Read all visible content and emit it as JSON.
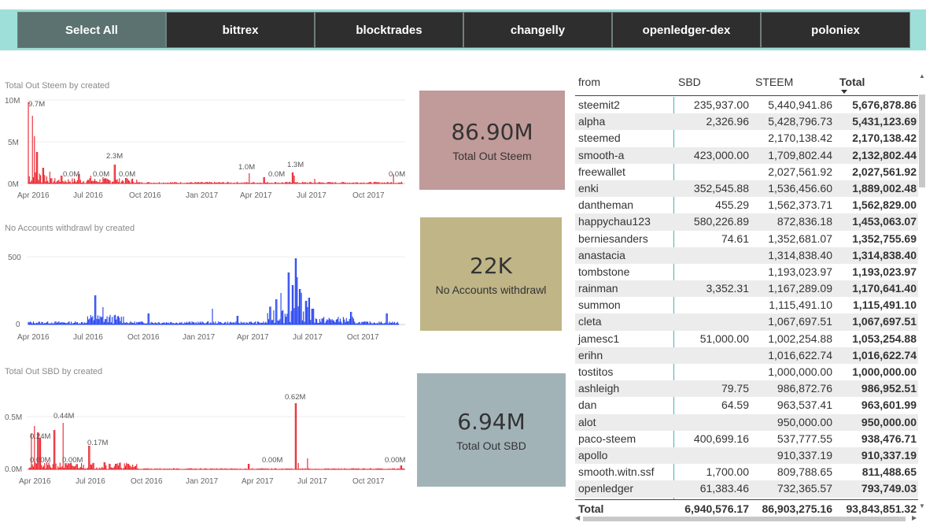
{
  "slicer": {
    "buttons": [
      {
        "label": "Select All",
        "selected": true
      },
      {
        "label": "bittrex",
        "selected": false
      },
      {
        "label": "blocktrades",
        "selected": false
      },
      {
        "label": "changelly",
        "selected": false
      },
      {
        "label": "openledger-dex",
        "selected": false
      },
      {
        "label": "poloniex",
        "selected": false
      }
    ]
  },
  "colors": {
    "slicer_bg": "#9fdfd9",
    "red_series": "#e8202a",
    "blue_series": "#1f3ff0",
    "card_steem": "#c09b99",
    "card_accounts": "#bfb587",
    "card_sbd": "#a2b3b8",
    "table_accent": "#40b8ae"
  },
  "chart_data": [
    {
      "type": "bar",
      "title": "Total Out Steem by created",
      "y_ticks": [
        "10M",
        "5M",
        "0M"
      ],
      "ylim": [
        0,
        10000000
      ],
      "x_ticks": [
        "Apr 2016",
        "Jul 2016",
        "Oct 2016",
        "Jan 2017",
        "Apr 2017",
        "Jul 2017",
        "Oct 2017"
      ],
      "annotations": [
        {
          "label": "9.7M",
          "value": 9700000
        },
        {
          "label": "0.0M",
          "value": 0
        },
        {
          "label": "0.0M",
          "value": 0
        },
        {
          "label": "2.3M",
          "value": 2300000
        },
        {
          "label": "0.0M",
          "value": 0
        },
        {
          "label": "1.0M",
          "value": 1000000
        },
        {
          "label": "0.0M",
          "value": 0
        },
        {
          "label": "1.3M",
          "value": 1300000
        },
        {
          "label": "0.0M",
          "value": 0
        }
      ]
    },
    {
      "type": "bar",
      "title": "No Accounts withdrawl by created",
      "y_ticks": [
        "500",
        "0"
      ],
      "ylim": [
        0,
        500
      ],
      "x_ticks": [
        "Apr 2016",
        "Jul 2016",
        "Oct 2016",
        "Jan 2017",
        "Apr 2017",
        "Jul 2017",
        "Oct 2017"
      ],
      "annotations": []
    },
    {
      "type": "bar",
      "title": "Total Out SBD by created",
      "y_ticks": [
        "0.5M",
        "0.0M"
      ],
      "ylim": [
        0,
        700000
      ],
      "x_ticks": [
        "Apr 2016",
        "Jul 2016",
        "Oct 2016",
        "Jan 2017",
        "Apr 2017",
        "Jul 2017",
        "Oct 2017"
      ],
      "annotations": [
        {
          "label": "0.24M",
          "value": 240000
        },
        {
          "label": "0.00M",
          "value": 0
        },
        {
          "label": "0.44M",
          "value": 440000
        },
        {
          "label": "0.00M",
          "value": 0
        },
        {
          "label": "0.17M",
          "value": 170000
        },
        {
          "label": "0.00M",
          "value": 0
        },
        {
          "label": "0.62M",
          "value": 620000
        },
        {
          "label": "0.00M",
          "value": 0
        }
      ]
    }
  ],
  "cards": {
    "steem": {
      "value": "86.90M",
      "label": "Total Out Steem"
    },
    "accounts": {
      "value": "22K",
      "label": "No Accounts withdrawl"
    },
    "sbd": {
      "value": "6.94M",
      "label": "Total Out SBD"
    }
  },
  "table": {
    "headers": {
      "from": "from",
      "sbd": "SBD",
      "steem": "STEEM",
      "total": "Total"
    },
    "rows": [
      {
        "from": "steemit2",
        "sbd": "235,937.00",
        "steem": "5,440,941.86",
        "total": "5,676,878.86"
      },
      {
        "from": "alpha",
        "sbd": "2,326.96",
        "steem": "5,428,796.73",
        "total": "5,431,123.69"
      },
      {
        "from": "steemed",
        "sbd": "",
        "steem": "2,170,138.42",
        "total": "2,170,138.42"
      },
      {
        "from": "smooth-a",
        "sbd": "423,000.00",
        "steem": "1,709,802.44",
        "total": "2,132,802.44"
      },
      {
        "from": "freewallet",
        "sbd": "",
        "steem": "2,027,561.92",
        "total": "2,027,561.92"
      },
      {
        "from": "enki",
        "sbd": "352,545.88",
        "steem": "1,536,456.60",
        "total": "1,889,002.48"
      },
      {
        "from": "dantheman",
        "sbd": "455.29",
        "steem": "1,562,373.71",
        "total": "1,562,829.00"
      },
      {
        "from": "happychau123",
        "sbd": "580,226.89",
        "steem": "872,836.18",
        "total": "1,453,063.07"
      },
      {
        "from": "berniesanders",
        "sbd": "74.61",
        "steem": "1,352,681.07",
        "total": "1,352,755.69"
      },
      {
        "from": "anastacia",
        "sbd": "",
        "steem": "1,314,838.40",
        "total": "1,314,838.40"
      },
      {
        "from": "tombstone",
        "sbd": "",
        "steem": "1,193,023.97",
        "total": "1,193,023.97"
      },
      {
        "from": "rainman",
        "sbd": "3,352.31",
        "steem": "1,167,289.09",
        "total": "1,170,641.40"
      },
      {
        "from": "summon",
        "sbd": "",
        "steem": "1,115,491.10",
        "total": "1,115,491.10"
      },
      {
        "from": "cleta",
        "sbd": "",
        "steem": "1,067,697.51",
        "total": "1,067,697.51"
      },
      {
        "from": "jamesc1",
        "sbd": "51,000.00",
        "steem": "1,002,254.88",
        "total": "1,053,254.88"
      },
      {
        "from": "erihn",
        "sbd": "",
        "steem": "1,016,622.74",
        "total": "1,016,622.74"
      },
      {
        "from": "tostitos",
        "sbd": "",
        "steem": "1,000,000.00",
        "total": "1,000,000.00"
      },
      {
        "from": "ashleigh",
        "sbd": "79.75",
        "steem": "986,872.76",
        "total": "986,952.51"
      },
      {
        "from": "dan",
        "sbd": "64.59",
        "steem": "963,537.41",
        "total": "963,601.99"
      },
      {
        "from": "alot",
        "sbd": "",
        "steem": "950,000.00",
        "total": "950,000.00"
      },
      {
        "from": "paco-steem",
        "sbd": "400,699.16",
        "steem": "537,777.55",
        "total": "938,476.71"
      },
      {
        "from": "apollo",
        "sbd": "",
        "steem": "910,337.19",
        "total": "910,337.19"
      },
      {
        "from": "smooth.witn.ssf",
        "sbd": "1,700.00",
        "steem": "809,788.65",
        "total": "811,488.65"
      },
      {
        "from": "openledger",
        "sbd": "61,383.46",
        "steem": "732,365.57",
        "total": "793,749.03"
      }
    ],
    "total": {
      "from": "Total",
      "sbd": "6,940,576.17",
      "steem": "86,903,275.16",
      "total": "93,843,851.32"
    }
  }
}
